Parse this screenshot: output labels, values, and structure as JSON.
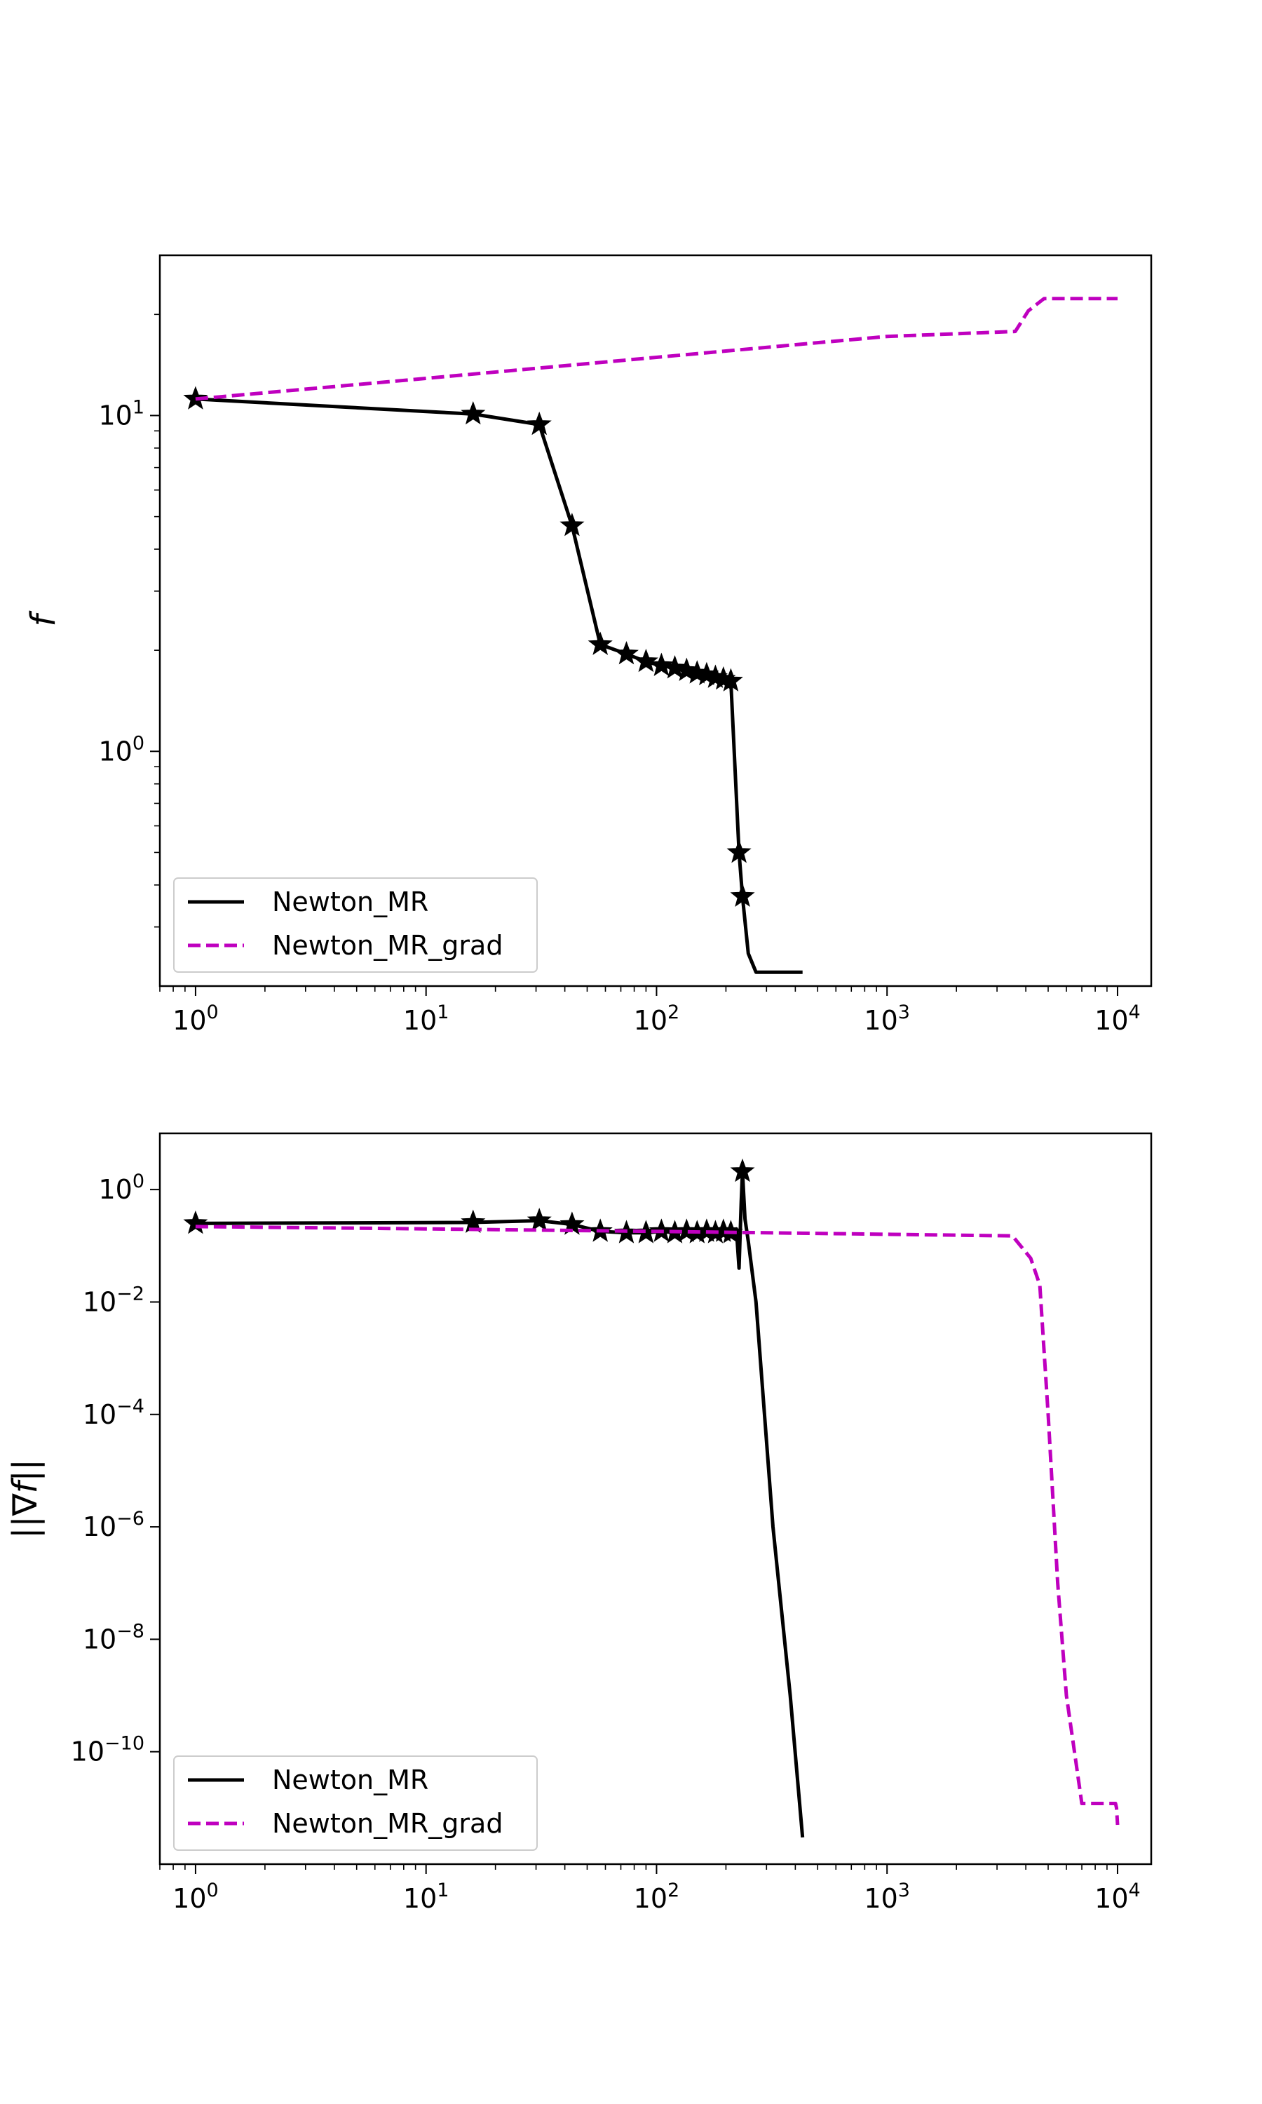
{
  "chart_data": [
    {
      "type": "line",
      "title": "",
      "xlabel": "",
      "ylabel": "f",
      "xscale": "log",
      "yscale": "log",
      "xlim": [
        0.7,
        14000
      ],
      "ylim": [
        0.2,
        30
      ],
      "x_ticks": [
        {
          "value": 1,
          "base": "10",
          "exp": "0"
        },
        {
          "value": 10,
          "base": "10",
          "exp": "1"
        },
        {
          "value": 100,
          "base": "10",
          "exp": "2"
        },
        {
          "value": 1000,
          "base": "10",
          "exp": "3"
        },
        {
          "value": 10000,
          "base": "10",
          "exp": "4"
        }
      ],
      "y_ticks": [
        {
          "value": 1,
          "base": "10",
          "exp": "0"
        },
        {
          "value": 10,
          "base": "10",
          "exp": "1"
        }
      ],
      "grid": false,
      "legend": {
        "position": "lower-left",
        "entries": [
          "Newton_MR",
          "Newton_MR_grad"
        ]
      },
      "series": [
        {
          "name": "Newton_MR",
          "color": "#000000",
          "style": "solid",
          "marker": "star",
          "x": [
            1,
            16,
            31,
            43,
            57,
            74,
            90,
            105,
            120,
            135,
            150,
            165,
            180,
            195,
            210,
            228,
            236,
            250,
            270,
            430
          ],
          "y": [
            11.2,
            10.1,
            9.4,
            4.7,
            2.08,
            1.95,
            1.85,
            1.8,
            1.77,
            1.74,
            1.71,
            1.69,
            1.66,
            1.64,
            1.62,
            0.5,
            0.37,
            0.25,
            0.22,
            0.22
          ],
          "markers_x": [
            1,
            16,
            31,
            43,
            57,
            74,
            90,
            105,
            120,
            135,
            150,
            165,
            180,
            195,
            210,
            228,
            236
          ],
          "markers_y": [
            11.2,
            10.1,
            9.4,
            4.7,
            2.08,
            1.95,
            1.85,
            1.8,
            1.77,
            1.74,
            1.71,
            1.69,
            1.66,
            1.64,
            1.62,
            0.5,
            0.37
          ]
        },
        {
          "name": "Newton_MR_grad",
          "color": "#bf00bf",
          "style": "dashed",
          "marker": "none",
          "x": [
            1,
            10,
            100,
            1000,
            3600,
            4100,
            4800,
            10000
          ],
          "y": [
            11.2,
            12.9,
            14.9,
            17.2,
            17.8,
            20.5,
            22.3,
            22.3
          ]
        }
      ]
    },
    {
      "type": "line",
      "title": "",
      "xlabel": "",
      "ylabel": "||∇f||",
      "xscale": "log",
      "yscale": "log",
      "xlim": [
        0.7,
        14000
      ],
      "ylim": [
        1e-12,
        10
      ],
      "x_ticks": [
        {
          "value": 1,
          "base": "10",
          "exp": "0"
        },
        {
          "value": 10,
          "base": "10",
          "exp": "1"
        },
        {
          "value": 100,
          "base": "10",
          "exp": "2"
        },
        {
          "value": 1000,
          "base": "10",
          "exp": "3"
        },
        {
          "value": 10000,
          "base": "10",
          "exp": "4"
        }
      ],
      "y_ticks": [
        {
          "value": 1,
          "base": "10",
          "exp": "0"
        },
        {
          "value": 0.01,
          "base": "10",
          "exp": "−2"
        },
        {
          "value": 0.0001,
          "base": "10",
          "exp": "−4"
        },
        {
          "value": 1e-06,
          "base": "10",
          "exp": "−6"
        },
        {
          "value": 1e-08,
          "base": "10",
          "exp": "−8"
        },
        {
          "value": 1e-10,
          "base": "10",
          "exp": "−10"
        }
      ],
      "grid": false,
      "legend": {
        "position": "lower-left",
        "entries": [
          "Newton_MR",
          "Newton_MR_grad"
        ]
      },
      "series": [
        {
          "name": "Newton_MR",
          "color": "#000000",
          "style": "solid",
          "marker": "star",
          "x": [
            1,
            16,
            31,
            43,
            57,
            74,
            90,
            105,
            120,
            135,
            150,
            165,
            180,
            195,
            210,
            222,
            228,
            233,
            236,
            242,
            250,
            270,
            320,
            380,
            430
          ],
          "y": [
            0.25,
            0.26,
            0.28,
            0.24,
            0.18,
            0.17,
            0.17,
            0.18,
            0.17,
            0.18,
            0.17,
            0.18,
            0.17,
            0.18,
            0.17,
            0.2,
            0.04,
            0.6,
            2.1,
            0.3,
            0.12,
            0.01,
            1e-06,
            1e-09,
            3e-12
          ],
          "markers_x": [
            1,
            16,
            31,
            43,
            57,
            74,
            90,
            105,
            120,
            135,
            150,
            165,
            180,
            195,
            210,
            236
          ],
          "markers_y": [
            0.25,
            0.26,
            0.28,
            0.24,
            0.18,
            0.17,
            0.17,
            0.18,
            0.17,
            0.18,
            0.17,
            0.18,
            0.17,
            0.18,
            0.17,
            2.1
          ]
        },
        {
          "name": "Newton_MR_grad",
          "color": "#bf00bf",
          "style": "dashed",
          "marker": "none",
          "x": [
            1,
            10,
            100,
            1000,
            3500,
            4200,
            4600,
            5000,
            5500,
            6000,
            6500,
            7000,
            9800,
            9900,
            10000
          ],
          "y": [
            0.22,
            0.2,
            0.18,
            0.16,
            0.15,
            0.06,
            0.02,
            0.0001,
            1e-07,
            1e-09,
            1e-10,
            1.2e-11,
            1.2e-11,
            1e-11,
            5e-12
          ]
        }
      ]
    }
  ]
}
